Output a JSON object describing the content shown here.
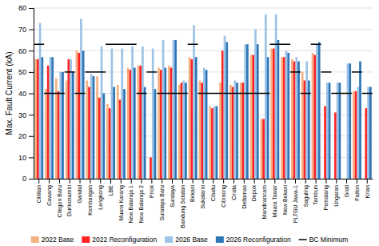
{
  "chart_data": {
    "type": "bar",
    "ylabel": "Max. Fault Current (kA)",
    "categories": [
      "Cililitan",
      "Cawang",
      "Cilegon Baru",
      "Durikosambi",
      "Gandul",
      "Kembangan",
      "Lengkong",
      "LBE",
      "Muara Karang",
      "New Balaraja 1",
      "New Balaraja 2",
      "Priok",
      "Suralaya Baru",
      "Suralaya",
      "Bandung Selatan",
      "Bekasi",
      "Sukatarni",
      "Cibatu",
      "Cibinong",
      "Cirata",
      "Deltamas",
      "Depok",
      "Mandirancam",
      "Muara Tawar",
      "New Bekasi",
      "PLTGU Jawa-1",
      "Saguling",
      "Tambun",
      "Pemalang",
      "Ungaran",
      "Grati",
      "Paiton",
      "Krian"
    ],
    "series": [
      {
        "name": "2022 Base",
        "type": "bar",
        "color": "#f4b183",
        "values": [
          56,
          42,
          47,
          46,
          60,
          46,
          48,
          35,
          44,
          52,
          53,
          0,
          52,
          53,
          44,
          57,
          46,
          34,
          45,
          44,
          45,
          58,
          28,
          61,
          57,
          56,
          50,
          59,
          0,
          0,
          0,
          41,
          0
        ]
      },
      {
        "name": "2022 Reconfiguration",
        "type": "bar",
        "color": "#ff2222",
        "values": [
          56,
          53,
          41,
          56,
          59,
          43,
          38,
          33,
          37,
          51,
          53,
          10,
          51,
          52,
          45,
          56,
          45,
          33,
          60,
          43,
          45,
          58,
          28,
          61,
          57,
          55,
          46,
          58,
          34,
          31,
          0,
          41,
          33
        ]
      },
      {
        "name": "2026 Base",
        "type": "bar",
        "color": "#9dc3e6",
        "values": [
          73,
          57,
          50,
          56,
          75,
          49,
          62,
          61,
          61,
          62,
          62,
          61,
          65,
          65,
          46,
          72,
          52,
          34,
          67,
          46,
          63,
          70,
          77,
          77,
          60,
          57,
          55,
          63,
          45,
          45,
          54,
          43,
          43
        ]
      },
      {
        "name": "2026 Reconfiguration",
        "type": "bar",
        "color": "#2e75b6",
        "values": [
          57,
          57,
          50,
          50,
          60,
          48,
          40,
          43,
          42,
          52,
          43,
          42,
          52,
          65,
          45,
          57,
          51,
          34,
          64,
          45,
          63,
          63,
          57,
          65,
          59,
          55,
          46,
          64,
          45,
          45,
          54,
          55,
          43
        ]
      },
      {
        "name": "BC Minimum",
        "type": "dash",
        "color": "#000000",
        "values": [
          63,
          40,
          40,
          50,
          40,
          50,
          50,
          63,
          63,
          63,
          40,
          50,
          40,
          40,
          40,
          63,
          40,
          40,
          40,
          40,
          40,
          40,
          40,
          63,
          63,
          50,
          40,
          63,
          50,
          40,
          40,
          50,
          40
        ]
      }
    ],
    "ylim": [
      0,
      80
    ],
    "yticks": [
      0,
      10,
      20,
      30,
      40,
      50,
      60,
      70,
      80
    ],
    "grid": true,
    "legend": "bottom"
  }
}
